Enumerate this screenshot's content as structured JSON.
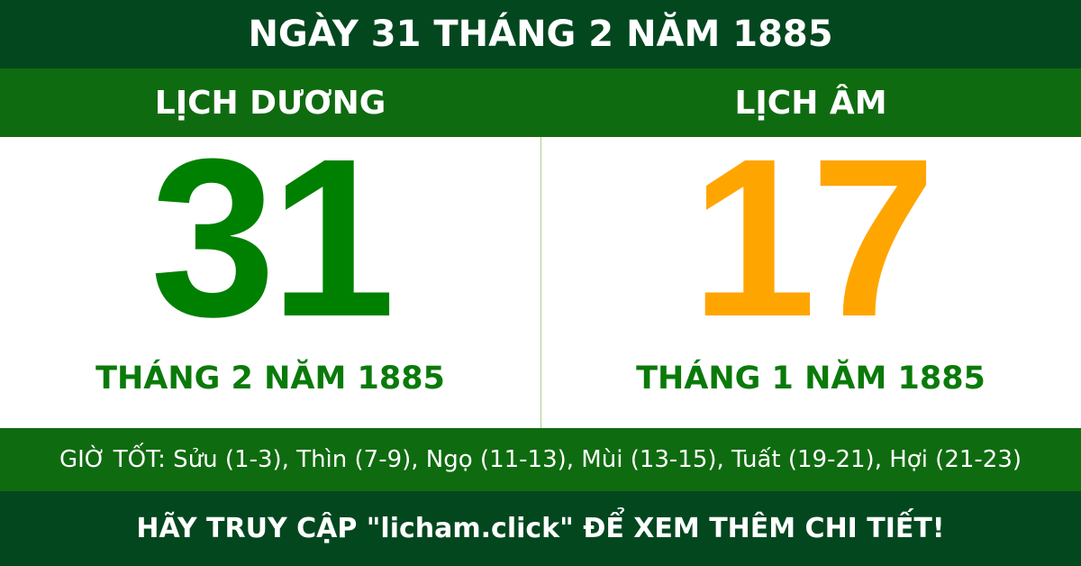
{
  "title": "NGÀY 31 THÁNG 2 NĂM 1885",
  "solar": {
    "heading": "LỊCH DƯƠNG",
    "day": "31",
    "month_year": "THÁNG 2 NĂM 1885"
  },
  "lunar": {
    "heading": "LỊCH ÂM",
    "day": "17",
    "month_year": "THÁNG 1 NĂM 1885"
  },
  "good_hours": "GIỜ TỐT: Sửu (1-3), Thìn (7-9), Ngọ (11-13), Mùi (13-15), Tuất (19-21), Hợi (21-23)",
  "footer": "HÃY TRUY CẬP \"licham.click\" ĐỂ XEM THÊM CHI TIẾT!",
  "colors": {
    "dark_green": "#03471f",
    "band_green": "#0f6b10",
    "solar_green": "#008000",
    "lunar_orange": "#ffa500"
  }
}
